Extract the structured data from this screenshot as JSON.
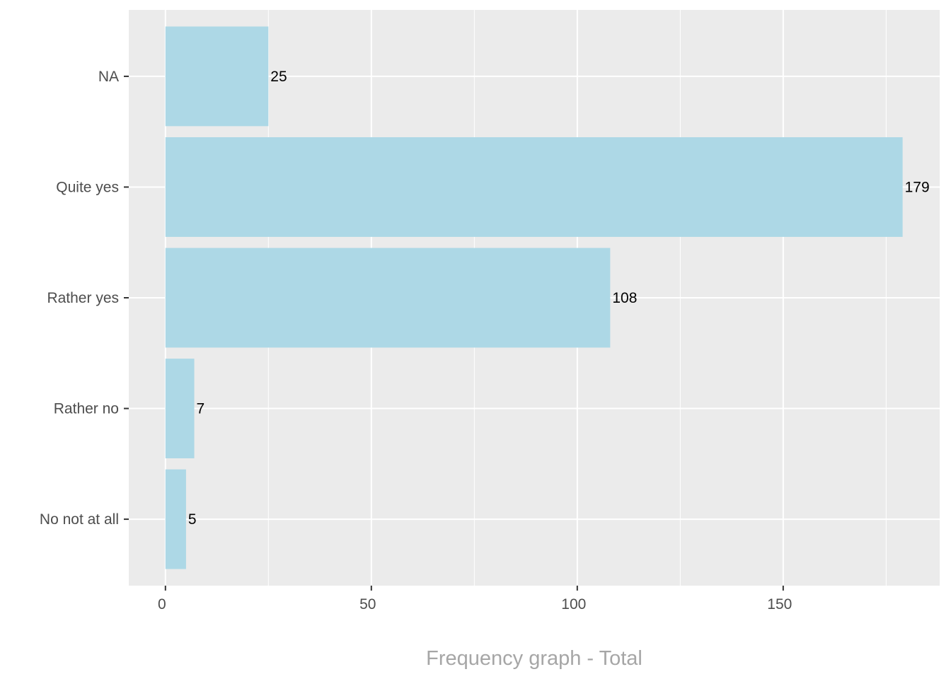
{
  "chart_data": {
    "type": "bar",
    "orientation": "horizontal",
    "categories": [
      "NA",
      "Quite yes",
      "Rather yes",
      "Rather no",
      "No not at all"
    ],
    "values": [
      25,
      179,
      108,
      7,
      5
    ],
    "data_labels": [
      "25",
      "179",
      "108",
      "7",
      "5"
    ],
    "title": "",
    "xlabel": "Frequency graph - Total",
    "ylabel": "",
    "xlim": [
      -8.9,
      188.0
    ],
    "x_ticks": [
      0,
      50,
      100,
      150
    ],
    "x_tick_labels": [
      "0",
      "50",
      "100",
      "150"
    ],
    "grid": true,
    "legend": "none"
  },
  "colors": {
    "bar_fill": "#add8e6",
    "panel_background": "#ebebeb",
    "grid_major": "#ffffff",
    "grid_minor": "#f5f5f5",
    "tick_label": "#4d4d4d",
    "axis_title": "#a6a6a6",
    "data_label": "#000000"
  }
}
